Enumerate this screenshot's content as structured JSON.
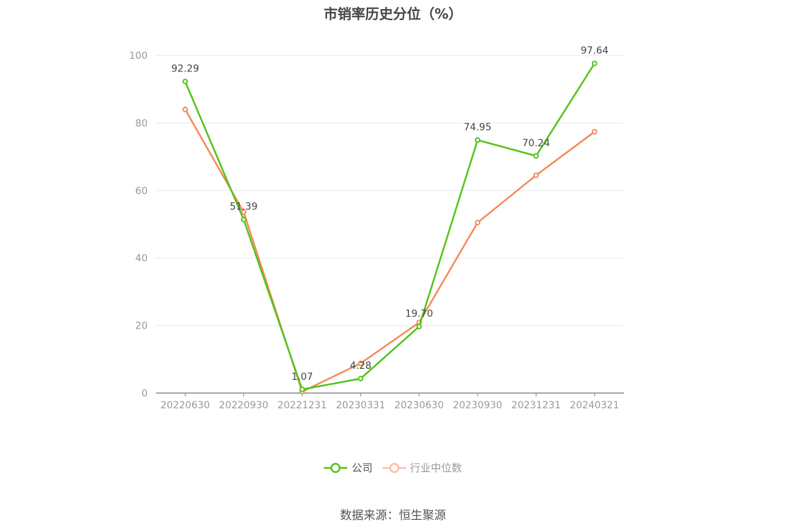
{
  "chart_data": {
    "type": "line",
    "title": "市销率历史分位（%）",
    "categories": [
      "20220630",
      "20220930",
      "20221231",
      "20230331",
      "20230630",
      "20230930",
      "20231231",
      "20240321"
    ],
    "ylim": [
      0,
      100
    ],
    "yticks": [
      0,
      20,
      40,
      60,
      80,
      100
    ],
    "grid": true,
    "legend_position": "bottom",
    "series": [
      {
        "name": "公司",
        "color": "#52c41a",
        "values": [
          92.29,
          51.39,
          1.07,
          4.28,
          19.7,
          74.95,
          70.24,
          97.64
        ],
        "labels": [
          "92.29",
          "51.39",
          "1.07",
          "4.28",
          "19.70",
          "74.95",
          "70.24",
          "97.64"
        ]
      },
      {
        "name": "行业中位数",
        "color": "#f5895a",
        "legend_color": "#fbbfa3",
        "values": [
          84.0,
          53.6,
          0.4,
          8.8,
          20.9,
          50.5,
          64.5,
          77.4
        ]
      }
    ]
  },
  "source": "数据来源：恒生聚源"
}
